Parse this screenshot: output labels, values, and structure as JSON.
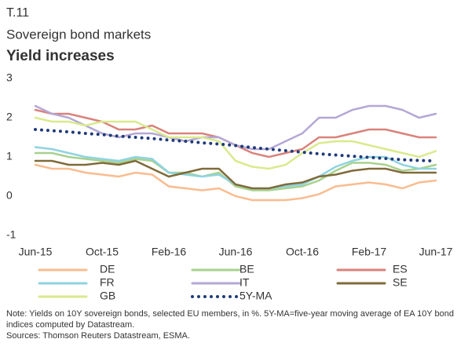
{
  "chart_data": {
    "type": "line",
    "label": "T.11",
    "subtitle": "Sovereign bond markets",
    "title": "Yield increases",
    "categories": [
      "Jun-15",
      null,
      null,
      null,
      "Oct-15",
      null,
      null,
      null,
      "Feb-16",
      null,
      null,
      null,
      "Jun-16",
      null,
      null,
      null,
      "Oct-16",
      null,
      null,
      null,
      "Feb-17",
      null,
      null,
      null,
      "Jun-17"
    ],
    "ylim": [
      -1,
      3
    ],
    "yticks": [
      -1,
      0,
      1,
      2,
      3
    ],
    "grid": false,
    "series": [
      {
        "name": "DE",
        "color": "#f9bc8f",
        "values": [
          0.8,
          0.7,
          0.7,
          0.6,
          0.55,
          0.5,
          0.6,
          0.55,
          0.25,
          0.2,
          0.15,
          0.2,
          0.0,
          -0.1,
          -0.1,
          -0.1,
          -0.05,
          0.05,
          0.25,
          0.3,
          0.35,
          0.3,
          0.2,
          0.35,
          0.4
        ]
      },
      {
        "name": "BE",
        "color": "#a9d18e",
        "values": [
          1.1,
          1.1,
          1.0,
          0.95,
          0.9,
          0.85,
          0.95,
          0.9,
          0.6,
          0.6,
          0.5,
          0.6,
          0.25,
          0.15,
          0.15,
          0.2,
          0.25,
          0.4,
          0.65,
          0.85,
          0.85,
          0.8,
          0.65,
          0.7,
          0.8
        ]
      },
      {
        "name": "ES",
        "color": "#d9827b",
        "values": [
          2.2,
          2.1,
          2.1,
          2.0,
          1.9,
          1.7,
          1.7,
          1.8,
          1.6,
          1.6,
          1.6,
          1.5,
          1.3,
          1.1,
          1.0,
          1.1,
          1.2,
          1.5,
          1.5,
          1.6,
          1.7,
          1.7,
          1.6,
          1.5,
          1.5
        ]
      },
      {
        "name": "FR",
        "color": "#8fd3e0",
        "values": [
          1.25,
          1.2,
          1.1,
          1.0,
          0.95,
          0.9,
          1.0,
          0.95,
          0.6,
          0.55,
          0.5,
          0.55,
          0.3,
          0.2,
          0.2,
          0.25,
          0.3,
          0.5,
          0.75,
          0.9,
          1.0,
          1.0,
          0.8,
          0.7,
          0.7
        ]
      },
      {
        "name": "IT",
        "color": "#b4a7d6",
        "values": [
          2.3,
          2.1,
          2.0,
          1.8,
          1.6,
          1.5,
          1.6,
          1.6,
          1.5,
          1.4,
          1.5,
          1.5,
          1.3,
          1.2,
          1.2,
          1.4,
          1.6,
          2.0,
          2.0,
          2.2,
          2.3,
          2.3,
          2.2,
          2.0,
          2.1
        ]
      },
      {
        "name": "SE",
        "color": "#7f6b3a",
        "values": [
          0.9,
          0.9,
          0.8,
          0.8,
          0.85,
          0.8,
          0.9,
          0.7,
          0.5,
          0.6,
          0.7,
          0.7,
          0.3,
          0.2,
          0.2,
          0.3,
          0.35,
          0.5,
          0.55,
          0.65,
          0.7,
          0.7,
          0.6,
          0.6,
          0.6
        ]
      },
      {
        "name": "GB",
        "color": "#d9ea8c",
        "values": [
          2.0,
          1.9,
          1.9,
          1.8,
          1.9,
          1.9,
          1.9,
          1.7,
          1.5,
          1.5,
          1.5,
          1.4,
          0.9,
          0.75,
          0.7,
          0.8,
          1.1,
          1.35,
          1.4,
          1.4,
          1.3,
          1.2,
          1.1,
          1.0,
          1.15
        ]
      },
      {
        "name": "5Y-MA",
        "color": "#1f3b7a",
        "style": "dotted",
        "values": [
          1.7,
          1.67,
          1.64,
          1.6,
          1.57,
          1.53,
          1.5,
          1.47,
          1.43,
          1.4,
          1.36,
          1.33,
          1.29,
          1.24,
          1.2,
          1.16,
          1.12,
          1.08,
          1.05,
          1.02,
          0.99,
          0.96,
          0.93,
          0.91,
          0.9
        ]
      }
    ],
    "notes": [
      "Note: Yields on 10Y sovereign bonds, selected EU members, in %. 5Y-MA=five-year moving average of EA 10Y bond indices computed by Datastream.",
      "Sources: Thomson Reuters Datastream, ESMA."
    ]
  }
}
